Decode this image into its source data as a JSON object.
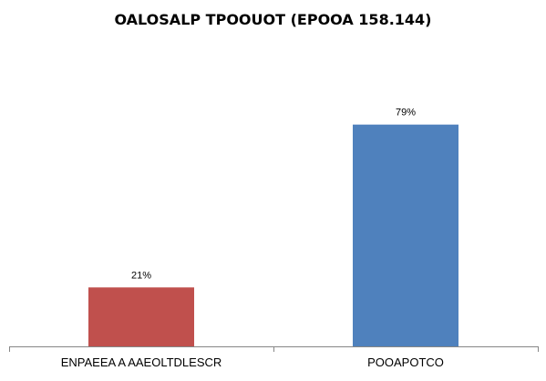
{
  "chart_data": {
    "type": "bar",
    "title": "OALOSALP TPOOUOT (EPOOA 158.144)",
    "xlabel": "",
    "ylabel": "",
    "ylim": [
      0,
      100
    ],
    "grid": false,
    "legend": "none",
    "categories": [
      "ENPAEEA A AAEOLTDLESCR",
      "POOAPOTCO"
    ],
    "values": [
      21,
      79
    ],
    "data_labels": [
      "21%",
      "79%"
    ],
    "colors": [
      "#c0504d",
      "#4f81bd"
    ]
  }
}
